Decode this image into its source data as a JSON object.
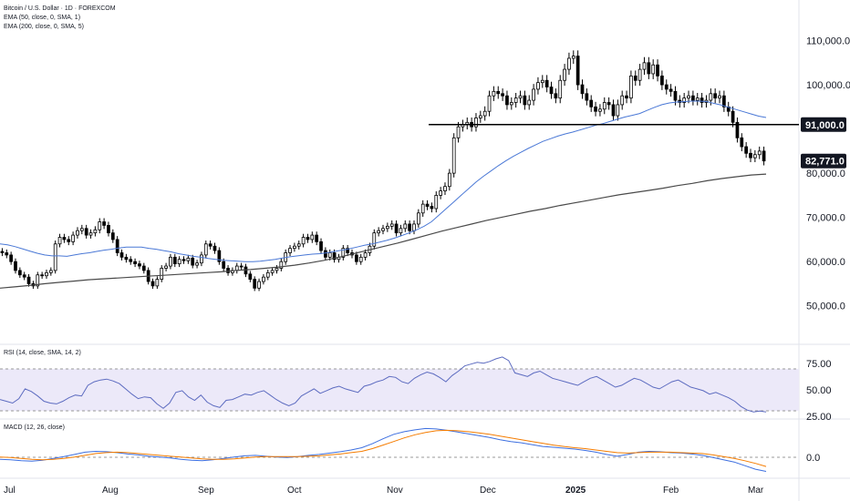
{
  "chart_data": {
    "type": "candlestick",
    "symbol_title": "Bitcoin / U.S. Dollar · 1D · FOREXCOM",
    "overlays": [
      {
        "name": "EMA (50, close, 0, SMA, 1)",
        "color": "#4a78d6"
      },
      {
        "name": "EMA (200, close, 0, SMA, 5)",
        "color": "#4a4a4a"
      }
    ],
    "price_axis": {
      "ticks": [
        "110,000.0",
        "100,000.0",
        "80,000.0",
        "70,000.0",
        "60,000.0",
        "50,000.0"
      ],
      "range": [
        45000,
        113000
      ]
    },
    "price_labels": [
      {
        "text": "91,000.0",
        "value": 91000
      },
      {
        "text": "82,771.0",
        "value": 82771
      }
    ],
    "horizontal_line": {
      "value": 91000,
      "color": "#000000"
    },
    "x_axis": {
      "labels": [
        "Jul",
        "Aug",
        "Sep",
        "Oct",
        "Nov",
        "Dec",
        "2025",
        "Feb",
        "Mar"
      ],
      "bold": [
        "2025"
      ]
    },
    "candles_close": [
      62000,
      61500,
      60000,
      58000,
      57000,
      56500,
      55000,
      54500,
      57000,
      56800,
      57500,
      58000,
      64000,
      65500,
      65000,
      64500,
      66000,
      67000,
      67500,
      66000,
      66500,
      67200,
      69000,
      68200,
      66500,
      65000,
      62000,
      61000,
      60500,
      60000,
      59500,
      59000,
      58000,
      55500,
      54500,
      56000,
      58500,
      59000,
      61000,
      59500,
      60500,
      60200,
      60800,
      59200,
      59700,
      61500,
      64000,
      63500,
      62500,
      60000,
      58500,
      57500,
      58000,
      59000,
      58800,
      57200,
      56000,
      54000,
      55500,
      56500,
      57500,
      58000,
      58500,
      60000,
      62000,
      63000,
      63500,
      64000,
      65500,
      65000,
      66000,
      64500,
      62500,
      61000,
      62000,
      60500,
      61000,
      63000,
      62000,
      61500,
      60000,
      61000,
      62000,
      63500,
      66500,
      67000,
      67500,
      68000,
      68500,
      66500,
      67500,
      68500,
      67000,
      68500,
      71000,
      73000,
      72500,
      72000,
      75000,
      76000,
      77000,
      80000,
      88000,
      90500,
      91000,
      91500,
      90500,
      92500,
      93000,
      94000,
      97500,
      98500,
      98000,
      97500,
      95500,
      96000,
      97000,
      97500,
      95500,
      96500,
      99000,
      100500,
      101000,
      99500,
      98000,
      97000,
      101000,
      103500,
      106000,
      106500,
      100000,
      98000,
      96500,
      95000,
      94000,
      94500,
      96000,
      95500,
      93000,
      95500,
      97500,
      97000,
      102000,
      101000,
      103500,
      105000,
      102500,
      104500,
      102000,
      100000,
      99000,
      98500,
      96500,
      96000,
      97000,
      97500,
      96500,
      97000,
      96000,
      96500,
      98000,
      97000,
      97500,
      95000,
      94000,
      91500,
      88000,
      86000,
      84500,
      83500,
      84200,
      85000,
      82771
    ],
    "ema50": [
      64000,
      63800,
      63400,
      62900,
      62400,
      61900,
      61500,
      61300,
      61300,
      61200,
      61500,
      61800,
      62000,
      62300,
      62600,
      62800,
      63100,
      63300,
      63300,
      63300,
      63000,
      62800,
      62500,
      62200,
      61800,
      61500,
      61200,
      61000,
      60700,
      60500,
      60300,
      60200,
      60100,
      60000,
      60000,
      60100,
      60300,
      60500,
      60800,
      61100,
      61300,
      61500,
      61700,
      61800,
      62000,
      62300,
      62600,
      62900,
      63300,
      63700,
      64000,
      64400,
      64800,
      65300,
      65900,
      66500,
      67200,
      68000,
      69000,
      70500,
      72000,
      73500,
      75000,
      76500,
      78000,
      79300,
      80500,
      81700,
      82800,
      83800,
      84700,
      85600,
      86400,
      87200,
      87800,
      88400,
      88900,
      89300,
      89800,
      90300,
      90800,
      91200,
      91700,
      92200,
      92700,
      93100,
      93500,
      94200,
      94900,
      95500,
      95900,
      96100,
      96200,
      96300,
      96300,
      96200,
      95800,
      95400,
      94900,
      94400,
      93900,
      93400,
      92900,
      92600
    ],
    "ema200": [
      54000,
      54300,
      54600,
      55000,
      55300,
      55600,
      55900,
      56100,
      56300,
      56500,
      56700,
      56900,
      57100,
      57300,
      57500,
      57700,
      58000,
      58200,
      58500,
      58800,
      59200,
      59700,
      60300,
      61000,
      61800,
      62600,
      63400,
      64200,
      65100,
      66000,
      66900,
      67700,
      68500,
      69300,
      70000,
      70700,
      71400,
      72000,
      72700,
      73300,
      73900,
      74500,
      75100,
      75600,
      76100,
      76600,
      77200,
      77700,
      78300,
      78800,
      79200,
      79600,
      79800
    ],
    "rsi": {
      "name": "RSI (14, close, SMA, 14, 2)",
      "ticks": [
        "75.00",
        "50.00",
        "25.00"
      ],
      "upper": 70,
      "lower": 30,
      "values": [
        40,
        38,
        36,
        41,
        52,
        49,
        44,
        38,
        36,
        35,
        38,
        42,
        45,
        44,
        56,
        60,
        62,
        63,
        61,
        58,
        52,
        46,
        41,
        43,
        42,
        35,
        30,
        36,
        48,
        50,
        43,
        39,
        45,
        37,
        33,
        31,
        39,
        40,
        43,
        46,
        45,
        48,
        50,
        45,
        40,
        36,
        33,
        36,
        44,
        48,
        52,
        47,
        50,
        53,
        55,
        52,
        50,
        48,
        55,
        57,
        60,
        62,
        66,
        65,
        60,
        58,
        64,
        68,
        71,
        69,
        65,
        60,
        67,
        72,
        78,
        80,
        82,
        81,
        83,
        86,
        88,
        84,
        70,
        68,
        66,
        70,
        72,
        68,
        64,
        62,
        60,
        58,
        56,
        60,
        64,
        66,
        62,
        58,
        54,
        56,
        60,
        64,
        62,
        58,
        54,
        52,
        56,
        60,
        62,
        58,
        54,
        52,
        50,
        46,
        48,
        45,
        42,
        38,
        32,
        28,
        26,
        27,
        26
      ]
    },
    "macd": {
      "name": "MACD (12, 26, close)",
      "ticks": [
        "0.0"
      ],
      "macd_values": [
        -800,
        -900,
        -1100,
        -1200,
        -1000,
        -600,
        -200,
        300,
        800,
        1000,
        900,
        700,
        400,
        200,
        -100,
        -300,
        -500,
        -800,
        -1000,
        -1100,
        -900,
        -600,
        -300,
        0,
        100,
        -100,
        -300,
        -400,
        -200,
        100,
        300,
        600,
        900,
        1300,
        1800,
        2700,
        3800,
        4800,
        5400,
        5800,
        6100,
        6000,
        5700,
        5300,
        4900,
        4500,
        4100,
        3600,
        3200,
        2900,
        2500,
        2100,
        1900,
        1700,
        1500,
        1200,
        800,
        300,
        -100,
        300,
        800,
        1000,
        900,
        700,
        600,
        400,
        100,
        -400,
        -900,
        -1400,
        -2200,
        -3000,
        -3500
      ],
      "signal_values": [
        -300,
        -400,
        -600,
        -800,
        -900,
        -800,
        -600,
        -300,
        100,
        500,
        700,
        800,
        700,
        500,
        300,
        100,
        -100,
        -300,
        -500,
        -700,
        -800,
        -800,
        -700,
        -500,
        -300,
        -200,
        -200,
        -200,
        -200,
        -100,
        0,
        200,
        400,
        700,
        1000,
        1600,
        2400,
        3200,
        4000,
        4700,
        5200,
        5600,
        5700,
        5600,
        5400,
        5100,
        4800,
        4400,
        4000,
        3600,
        3200,
        2800,
        2400,
        2100,
        1800,
        1600,
        1300,
        1000,
        700,
        600,
        700,
        800,
        800,
        800,
        700,
        600,
        500,
        200,
        -200,
        -600,
        -1100,
        -1700,
        -2400
      ]
    }
  }
}
